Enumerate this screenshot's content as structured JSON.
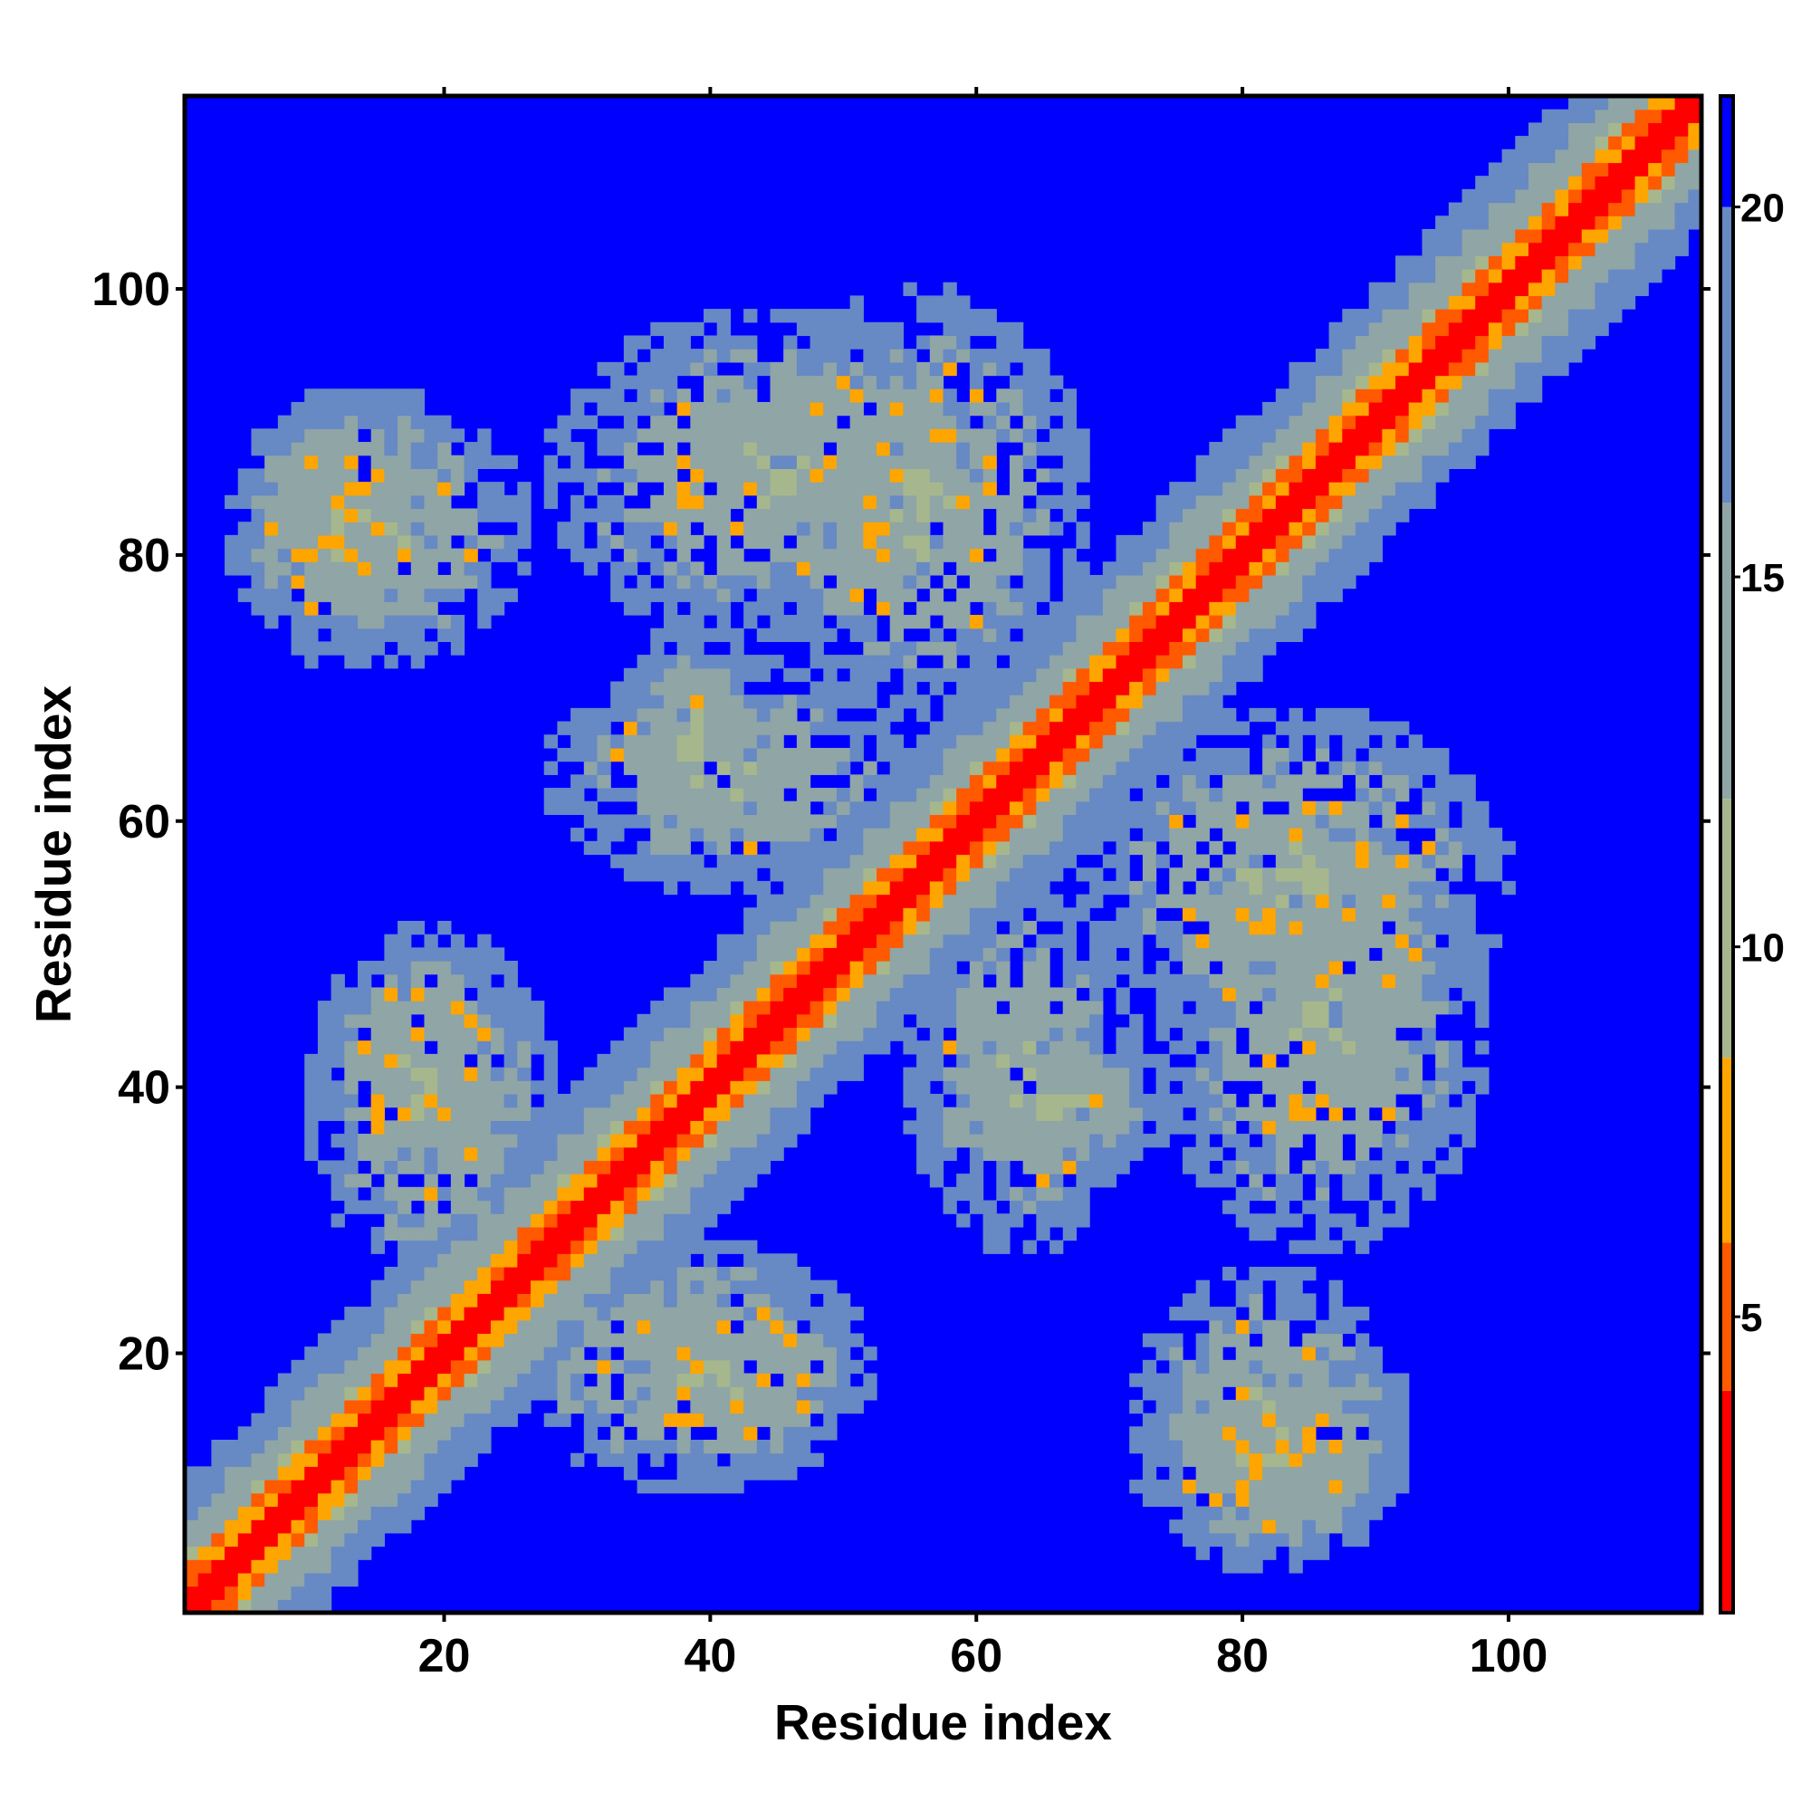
{
  "chart_data": {
    "type": "heatmap",
    "title": "",
    "xlabel": "Residue index",
    "ylabel": "Residue index",
    "n_residues": 114,
    "xlim": [
      1,
      114
    ],
    "ylim": [
      1,
      114
    ],
    "x_ticks": [
      20,
      40,
      60,
      80,
      100
    ],
    "y_ticks": [
      20,
      40,
      60,
      80,
      100
    ],
    "x_tick_labels": [
      "20",
      "40",
      "60",
      "80",
      "100"
    ],
    "y_tick_labels": [
      "20",
      "40",
      "60",
      "80",
      "100"
    ],
    "colorbar": {
      "range": [
        1,
        21.5
      ],
      "ticks": [
        5,
        10,
        15,
        20
      ],
      "tick_labels": [
        "5",
        "10",
        "15",
        "20"
      ],
      "colors": [
        {
          "from": 1,
          "to": 4,
          "color": "#ff0000"
        },
        {
          "from": 4,
          "to": 6,
          "color": "#ff5a00"
        },
        {
          "from": 6,
          "to": 8.5,
          "color": "#ffa500"
        },
        {
          "from": 8.5,
          "to": 12,
          "color": "#a6b78e"
        },
        {
          "from": 12,
          "to": 16,
          "color": "#8fa5a6"
        },
        {
          "from": 16,
          "to": 20,
          "color": "#6789c4"
        },
        {
          "from": 20,
          "to": 21.5,
          "color": "#0000ff"
        }
      ]
    },
    "background_color": "#0000ff",
    "value_description": "pairwise inter-residue distance map; values near the diagonal are small (red), distant residues saturate at the maximum (blue)",
    "features": [
      {
        "kind": "diagonal_band",
        "from": 1,
        "to": 114
      },
      {
        "kind": "contact_cluster",
        "i_range": [
          4,
          20
        ],
        "j_range": [
          72,
          92
        ]
      },
      {
        "kind": "contact_cluster",
        "i_range": [
          28,
          60
        ],
        "j_range": [
          74,
          98
        ]
      },
      {
        "kind": "contact_cluster",
        "i_range": [
          10,
          26
        ],
        "j_range": [
          34,
          50
        ]
      },
      {
        "kind": "contact_cluster",
        "i_range": [
          26,
          52
        ],
        "j_range": [
          10,
          28
        ]
      },
      {
        "kind": "contact_cluster",
        "i_range": [
          56,
          76
        ],
        "j_range": [
          34,
          44
        ]
      },
      {
        "kind": "contact_cluster",
        "i_range": [
          72,
          92
        ],
        "j_range": [
          5,
          26
        ]
      },
      {
        "kind": "contact_cluster",
        "i_range": [
          68,
          100
        ],
        "j_range": [
          44,
          68
        ]
      },
      {
        "kind": "contact_cluster",
        "i_range": [
          28,
          54
        ],
        "j_range": [
          55,
          72
        ]
      }
    ]
  }
}
